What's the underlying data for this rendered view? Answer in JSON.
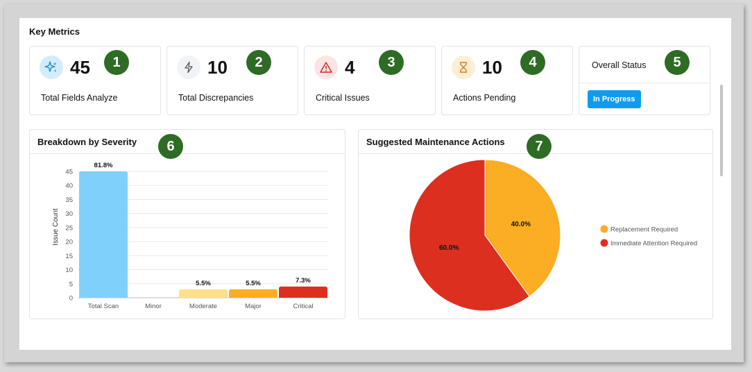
{
  "section_title": "Key Metrics",
  "metrics": [
    {
      "value": "45",
      "label": "Total Fields Analyze",
      "icon": "sparkle-icon",
      "badge": "1"
    },
    {
      "value": "10",
      "label": "Total Discrepancies",
      "icon": "lightning-icon",
      "badge": "2"
    },
    {
      "value": "4",
      "label": "Critical Issues",
      "icon": "warning-icon",
      "badge": "3"
    },
    {
      "value": "10",
      "label": "Actions Pending",
      "icon": "hourglass-icon",
      "badge": "4"
    }
  ],
  "overall_status": {
    "title": "Overall Status",
    "value": "In Progress",
    "badge": "5"
  },
  "severity_chart": {
    "title": "Breakdown by Severity",
    "badge": "6"
  },
  "actions_chart": {
    "title": "Suggested Maintenance Actions",
    "badge": "7"
  },
  "colors": {
    "badge": "#2e6b25",
    "status_pill": "#0e9cf0",
    "total_scan": "#80d0fc",
    "moderate": "#fde08a",
    "major": "#fbad24",
    "critical": "#dc2f20"
  },
  "chart_data": [
    {
      "type": "bar",
      "title": "Breakdown by Severity",
      "categories": [
        "Total Scan",
        "Minor",
        "Moderate",
        "Major",
        "Critical"
      ],
      "values": [
        45,
        0,
        3,
        3,
        4
      ],
      "data_labels": [
        "81.8%",
        "",
        "5.5%",
        "5.5%",
        "7.3%"
      ],
      "bar_colors": [
        "#80d0fc",
        "#80d0fc",
        "#fde08a",
        "#fbad24",
        "#dc2f20"
      ],
      "ylabel": "Issue Count",
      "xlabel": "",
      "ylim": [
        0,
        45
      ],
      "yticks": [
        0,
        5,
        10,
        15,
        20,
        25,
        30,
        35,
        40,
        45
      ],
      "grid": true
    },
    {
      "type": "pie",
      "title": "Suggested Maintenance Actions",
      "slices": [
        {
          "label": "Replacement Required",
          "value": 40.0,
          "display": "40.0%",
          "color": "#fbad24"
        },
        {
          "label": "Immediate Attention Required",
          "value": 60.0,
          "display": "60.0%",
          "color": "#dc2f20"
        }
      ],
      "legend_position": "right"
    }
  ]
}
